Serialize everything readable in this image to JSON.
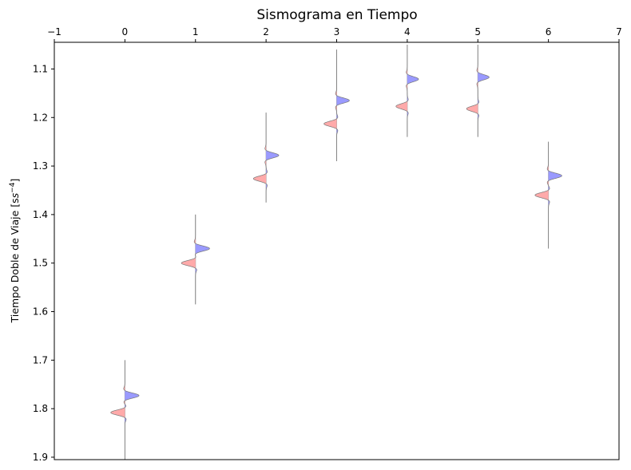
{
  "chart_data": {
    "type": "line",
    "title": "Sismograma en Tiempo",
    "ylabel": "Tiempo Doble de Viaje [s",
    "ylabel_exponent": "−4",
    "ylabel_close": "]",
    "xlabel": "",
    "xlim": [
      -1,
      7
    ],
    "ylim": [
      1.905,
      1.045
    ],
    "y_inverted": true,
    "x_axis_position": "top",
    "grid": false,
    "x_ticks": [
      {
        "value": -1,
        "label": "−1"
      },
      {
        "value": 0,
        "label": "0"
      },
      {
        "value": 1,
        "label": "1"
      },
      {
        "value": 2,
        "label": "2"
      },
      {
        "value": 3,
        "label": "3"
      },
      {
        "value": 4,
        "label": "4"
      },
      {
        "value": 5,
        "label": "5"
      },
      {
        "value": 6,
        "label": "6"
      },
      {
        "value": 7,
        "label": "7"
      }
    ],
    "y_ticks": [
      {
        "value": 1.1,
        "label": "1.1"
      },
      {
        "value": 1.2,
        "label": "1.2"
      },
      {
        "value": 1.3,
        "label": "1.3"
      },
      {
        "value": 1.4,
        "label": "1.4"
      },
      {
        "value": 1.5,
        "label": "1.5"
      },
      {
        "value": 1.6,
        "label": "1.6"
      },
      {
        "value": 1.7,
        "label": "1.7"
      },
      {
        "value": 1.8,
        "label": "1.8"
      },
      {
        "value": 1.9,
        "label": "1.9"
      }
    ],
    "colors": {
      "positive_fill": "#9a9aff",
      "negative_fill": "#ffaaaa",
      "trace_line": "#777777",
      "baseline": "#a8a8a8"
    },
    "traces": [
      {
        "x": 0,
        "t_start": 1.7,
        "t_end": 1.905,
        "events": [
          {
            "t": 1.773,
            "amp": 0.2
          },
          {
            "t": 1.808,
            "amp": -0.2
          }
        ]
      },
      {
        "x": 1,
        "t_start": 1.4,
        "t_end": 1.585,
        "events": [
          {
            "t": 1.47,
            "amp": 0.2
          },
          {
            "t": 1.5,
            "amp": -0.2
          }
        ]
      },
      {
        "x": 2,
        "t_start": 1.19,
        "t_end": 1.375,
        "events": [
          {
            "t": 1.278,
            "amp": 0.18
          },
          {
            "t": 1.326,
            "amp": -0.18
          }
        ]
      },
      {
        "x": 3,
        "t_start": 1.06,
        "t_end": 1.29,
        "events": [
          {
            "t": 1.165,
            "amp": 0.18
          },
          {
            "t": 1.213,
            "amp": -0.18
          }
        ]
      },
      {
        "x": 4,
        "t_start": 1.05,
        "t_end": 1.24,
        "events": [
          {
            "t": 1.121,
            "amp": 0.16
          },
          {
            "t": 1.177,
            "amp": -0.16
          }
        ]
      },
      {
        "x": 5,
        "t_start": 1.05,
        "t_end": 1.24,
        "events": [
          {
            "t": 1.117,
            "amp": 0.16
          },
          {
            "t": 1.182,
            "amp": -0.16
          }
        ]
      },
      {
        "x": 6,
        "t_start": 1.25,
        "t_end": 1.47,
        "events": [
          {
            "t": 1.32,
            "amp": 0.19
          },
          {
            "t": 1.36,
            "amp": -0.19
          }
        ]
      }
    ]
  }
}
